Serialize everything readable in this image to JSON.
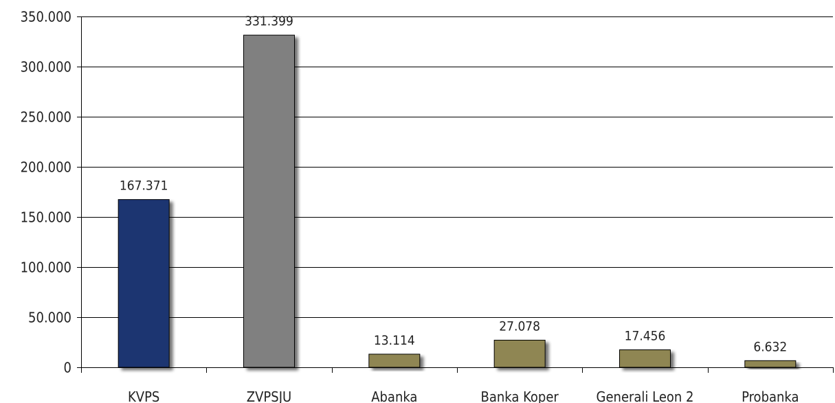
{
  "chart_data": {
    "type": "bar",
    "title": "",
    "xlabel": "",
    "ylabel": "",
    "categories": [
      "KVPS",
      "ZVPSJU",
      "Abanka",
      "Banka Koper",
      "Generali Leon 2",
      "Probanka"
    ],
    "values": [
      167371,
      331399,
      13114,
      27078,
      17456,
      6632
    ],
    "value_labels": [
      "167.371",
      "331.399",
      "13.114",
      "27.078",
      "17.456",
      "6.632"
    ],
    "bar_colors": [
      "#1f3671",
      "#808080",
      "#8f8653",
      "#8f8653",
      "#8f8653",
      "#8f8653"
    ],
    "ylim": [
      0,
      350000
    ],
    "yticks": [
      0,
      50000,
      100000,
      150000,
      200000,
      250000,
      300000,
      350000
    ],
    "ytick_labels": [
      "0",
      "50.000",
      "100.000",
      "150.000",
      "200.000",
      "250.000",
      "300.000",
      "350.000"
    ],
    "grid": true,
    "legend": "none"
  }
}
